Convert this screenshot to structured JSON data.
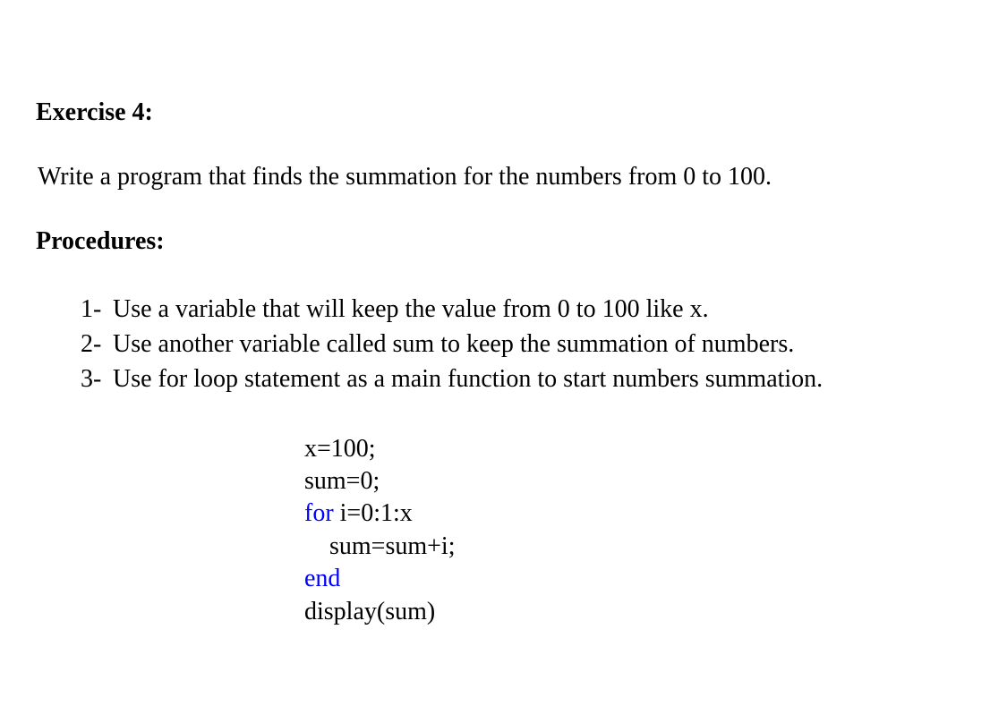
{
  "exercise": {
    "title": "Exercise 4:",
    "description": "Write a program that finds the summation for the numbers from 0 to 100.",
    "procedures_heading": "Procedures:",
    "procedures": [
      {
        "number": "1-",
        "text": "Use a variable that will keep the value from 0 to 100 like x."
      },
      {
        "number": "2-",
        "text": "Use another variable called sum to keep the summation of numbers."
      },
      {
        "number": "3-",
        "text": "Use for loop statement as a main function to start numbers summation."
      }
    ],
    "code": {
      "lines": [
        {
          "segments": [
            {
              "text": "x=100;",
              "keyword": false
            }
          ]
        },
        {
          "segments": [
            {
              "text": "sum=0;",
              "keyword": false
            }
          ]
        },
        {
          "segments": [
            {
              "text": "for",
              "keyword": true
            },
            {
              "text": " i=0:1:x",
              "keyword": false
            }
          ]
        },
        {
          "segments": [
            {
              "text": "    sum=sum+i;",
              "keyword": false
            }
          ]
        },
        {
          "segments": [
            {
              "text": "end",
              "keyword": true
            }
          ]
        },
        {
          "segments": [
            {
              "text": "display(sum)",
              "keyword": false
            }
          ]
        }
      ]
    },
    "colors": {
      "text": "#000000",
      "keyword": "#0000ff",
      "background": "#ffffff"
    },
    "typography": {
      "font_family": "Times New Roman",
      "body_fontsize": 28,
      "heading_weight": "bold"
    }
  }
}
